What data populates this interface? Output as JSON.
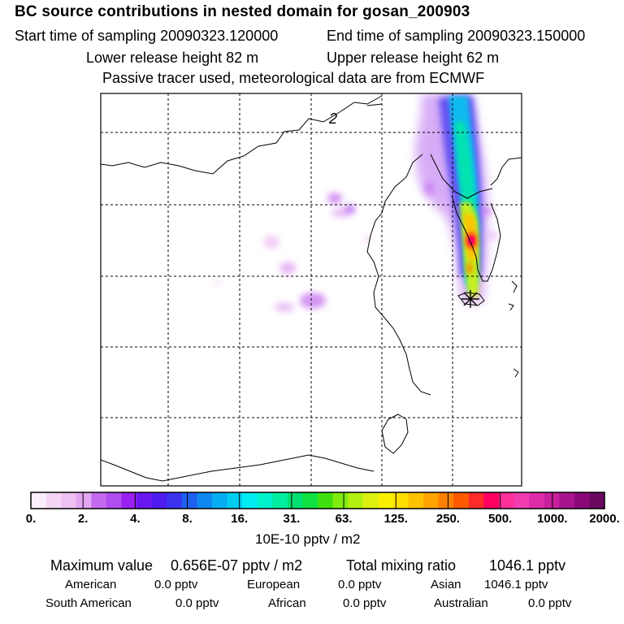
{
  "header": {
    "title": "BC  source contributions in nested domain for gosan_200903",
    "start_label": "Start time of sampling 20090323.120000",
    "end_label": "End time of sampling 20090323.150000",
    "lower_label": "Lower release height   82 m",
    "upper_label": "Upper release height   62 m",
    "tracer_note": "Passive tracer used, meteorological data are from ECMWF"
  },
  "map": {
    "contour_label": "2",
    "receptor_marker": "gosan-receptor"
  },
  "colorbar": {
    "colors": [
      "#fbeefb",
      "#f5d5f5",
      "#eec0f3",
      "#e2a6f2",
      "#c36af0",
      "#b04cf0",
      "#9a22f0",
      "#6818f0",
      "#4e1cf0",
      "#3a34f0",
      "#1e60f0",
      "#0e88f0",
      "#05aef0",
      "#00ccf0",
      "#00ecf2",
      "#00f2cc",
      "#00eea0",
      "#00e070",
      "#10e040",
      "#40e010",
      "#80ec10",
      "#b2f010",
      "#dcf010",
      "#f8f000",
      "#ffde00",
      "#ffc200",
      "#ffa400",
      "#ff8000",
      "#ff5a00",
      "#ff2a2a",
      "#ff0060",
      "#ff3098",
      "#f23cb0",
      "#dc2ca8",
      "#c8209c",
      "#a8148c",
      "#8a0878",
      "#6a0860"
    ],
    "ticks": [
      "0.",
      "2.",
      "4.",
      "8.",
      "16.",
      "31.",
      "63.",
      "125.",
      "250.",
      "500.",
      "1000.",
      "2000."
    ],
    "units": "10E-10 pptv / m2"
  },
  "stats": {
    "max_label": "Maximum value",
    "max_value": "0.656E-07 pptv / m2",
    "total_label": "Total mixing ratio",
    "total_value": "1046.1 pptv",
    "american_label": "American",
    "american_value": "0.0 pptv",
    "european_label": "European",
    "european_value": "0.0 pptv",
    "asian_label": "Asian",
    "asian_value": "1046.1 pptv",
    "south_american_label": "South American",
    "south_american_value": "0.0 pptv",
    "african_label": "African",
    "african_value": "0.0 pptv",
    "australian_label": "Australian",
    "australian_value": "0.0 pptv"
  }
}
